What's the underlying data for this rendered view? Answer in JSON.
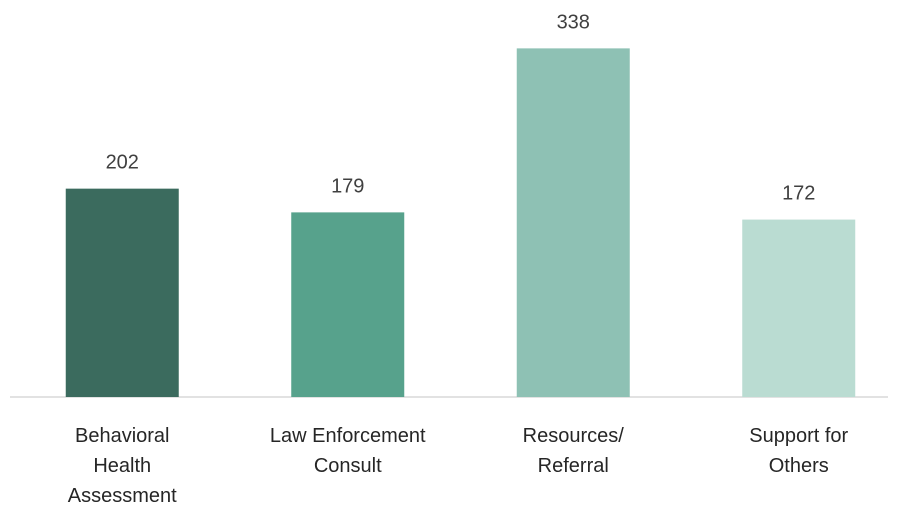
{
  "chart_data": {
    "type": "bar",
    "categories": [
      "Behavioral\nHealth\nAssessment",
      "Law Enforcement\nConsult",
      "Resources/\nReferral",
      "Support for\nOthers"
    ],
    "values": [
      202,
      179,
      338,
      172
    ],
    "colors": [
      "#3b6b5e",
      "#57a28c",
      "#8ec1b4",
      "#badcd2"
    ],
    "ylim": [
      0,
      350
    ]
  }
}
